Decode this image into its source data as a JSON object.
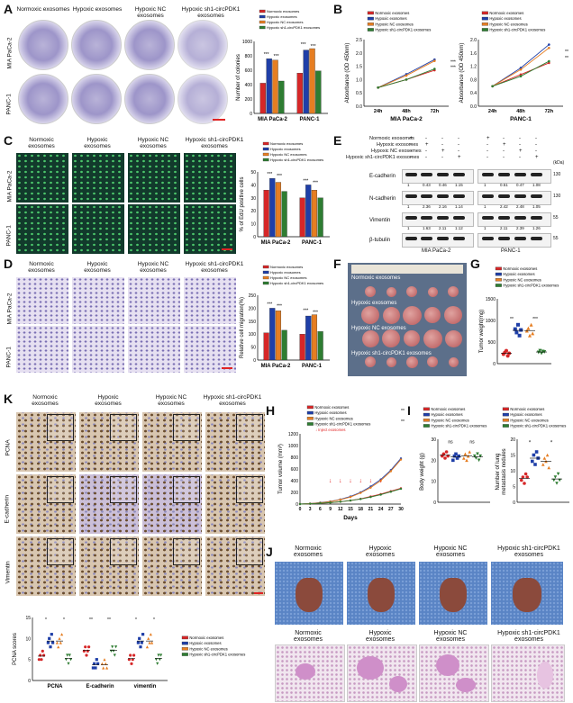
{
  "panel_letters": [
    "A",
    "B",
    "C",
    "D",
    "E",
    "F",
    "G",
    "H",
    "I",
    "J",
    "K"
  ],
  "groups": [
    "Normoxic exosomes",
    "Hypoxic exosomes",
    "Hypoxic NC exosomes",
    "Hypoxic sh1-circPDK1 exosomes"
  ],
  "group_headers": {
    "g1": "Normoxic\nexosomes",
    "g2": "Hypoxic\nexosomes",
    "g3": "Hypoxic NC\nexosomes",
    "g4": "Hypoxic sh1-circPDK1\nexosomes"
  },
  "cell_lines": [
    "MIA PaCa-2",
    "PANC-1"
  ],
  "stain_rows": [
    "PCNA",
    "E-cadherin",
    "Vimentin"
  ],
  "colors": {
    "normoxic": "#d62728",
    "hypoxic": "#1f3fa8",
    "hypoxicNC": "#e67e22",
    "sh1": "#2e7d32",
    "accent": "#e02424"
  },
  "panel_a": {
    "ylabel": "Number of colonies",
    "sig": [
      "***",
      "***",
      "***",
      "***"
    ]
  },
  "panel_b": {
    "ylabel": "Absorbance (OD 450nm)",
    "x_ticks": [
      "24h",
      "48h",
      "72h"
    ],
    "sig": [
      "***",
      "***",
      "**",
      "**"
    ]
  },
  "panel_c": {
    "ylabel": "% of EdU positive cells",
    "sig": [
      "***",
      "***",
      "***",
      "***"
    ]
  },
  "panel_d": {
    "ylabel": "Relative cell migration(%)",
    "sig": [
      "***",
      "***",
      "***",
      "***"
    ]
  },
  "panel_e": {
    "unit_label": "(kDa)",
    "rows": [
      {
        "name": "E-cadherin",
        "values_mia": [
          "1",
          "0.43",
          "0.46",
          "1.15"
        ],
        "values_panc": [
          "1",
          "0.51",
          "0.47",
          "1.08"
        ],
        "kda": "130"
      },
      {
        "name": "N-cadherin",
        "values_mia": [
          "1",
          "2.36",
          "2.16",
          "1.14"
        ],
        "values_panc": [
          "1",
          "2.42",
          "2.48",
          "1.05"
        ],
        "kda": "130"
      },
      {
        "name": "Vimentin",
        "values_mia": [
          "1",
          "1.63",
          "2.11",
          "1.12"
        ],
        "values_panc": [
          "1",
          "2.11",
          "2.39",
          "1.26"
        ],
        "kda": "55"
      },
      {
        "name": "β-tubulin",
        "values_mia": [],
        "values_panc": [],
        "kda": "55"
      }
    ],
    "kda_markers": [
      "130",
      "130",
      "55",
      "55"
    ],
    "plus": "+",
    "minus": "-"
  },
  "panel_f": {
    "rows": [
      "Normoxic exosomes",
      "Hypoxic exosomes",
      "Hypoxic NC exosomes",
      "Hypoxic sh1-circPDK1 exosomes"
    ]
  },
  "panel_g": {
    "ylabel": "Tumor weight(mg)",
    "sig": [
      "**",
      "***"
    ]
  },
  "panel_h": {
    "ylabel": "Tumor volume (mm³)",
    "xlabel": "Days",
    "x_ticks": [
      "0",
      "3",
      "6",
      "9",
      "12",
      "15",
      "18",
      "21",
      "24",
      "27",
      "30"
    ],
    "inject_label": "Inject exosomes",
    "sig": [
      "**",
      "**"
    ]
  },
  "panel_i": {
    "ylabel_left": "Body weight (g)",
    "ylabel_right": "Number of lung\nmetastasis nodules",
    "sig_left": [
      "ns",
      "ns"
    ],
    "sig_right": [
      "*",
      "*"
    ]
  },
  "panel_k": {
    "ylabel": "PCNA scores",
    "x_ticks": [
      "PCNA",
      "E-cadherin",
      "vimentin"
    ],
    "sig": [
      "*",
      "*",
      "**",
      "**",
      "*",
      "*"
    ]
  },
  "chart_data": [
    {
      "type": "bar",
      "id": "A",
      "categories": [
        "MIA PaCa-2",
        "PANC-1"
      ],
      "series": [
        {
          "name": "Normoxic exosomes",
          "values": [
            420,
            560
          ]
        },
        {
          "name": "Hypoxic exosomes",
          "values": [
            760,
            880
          ]
        },
        {
          "name": "Hypoxic NC exosomes",
          "values": [
            740,
            900
          ]
        },
        {
          "name": "Hypoxic sh1-circPDK1 exosomes",
          "values": [
            450,
            590
          ]
        }
      ],
      "ylabel": "Number of colonies",
      "ylim": [
        0,
        1000
      ]
    },
    {
      "type": "line",
      "id": "B-MIA",
      "x": [
        "24h",
        "48h",
        "72h"
      ],
      "series": [
        {
          "name": "Normoxic exosomes",
          "values": [
            0.7,
            1.0,
            1.35
          ]
        },
        {
          "name": "Hypoxic exosomes",
          "values": [
            0.7,
            1.2,
            1.75
          ]
        },
        {
          "name": "Hypoxic NC exosomes",
          "values": [
            0.7,
            1.15,
            1.7
          ]
        },
        {
          "name": "Hypoxic sh1-circPDK1 exosomes",
          "values": [
            0.7,
            1.0,
            1.4
          ]
        }
      ],
      "ylabel": "Absorbance (OD 450nm)",
      "xlabel": "MIA PaCa-2",
      "ylim": [
        0,
        2.5
      ]
    },
    {
      "type": "line",
      "id": "B-PANC",
      "x": [
        "24h",
        "48h",
        "72h"
      ],
      "series": [
        {
          "name": "Normoxic exosomes",
          "values": [
            0.6,
            0.95,
            1.3
          ]
        },
        {
          "name": "Hypoxic exosomes",
          "values": [
            0.6,
            1.15,
            1.85
          ]
        },
        {
          "name": "Hypoxic NC exosomes",
          "values": [
            0.6,
            1.1,
            1.75
          ]
        },
        {
          "name": "Hypoxic sh1-circPDK1 exosomes",
          "values": [
            0.6,
            0.9,
            1.35
          ]
        }
      ],
      "ylabel": "Absorbance (OD 450nm)",
      "xlabel": "PANC-1",
      "ylim": [
        0,
        2.0
      ]
    },
    {
      "type": "bar",
      "id": "C",
      "categories": [
        "MIA PaCa-2",
        "PANC-1"
      ],
      "series": [
        {
          "name": "Normoxic exosomes",
          "values": [
            36,
            30
          ]
        },
        {
          "name": "Hypoxic exosomes",
          "values": [
            45,
            40
          ]
        },
        {
          "name": "Hypoxic NC exosomes",
          "values": [
            42,
            36
          ]
        },
        {
          "name": "Hypoxic sh1-circPDK1 exosomes",
          "values": [
            35,
            30
          ]
        }
      ],
      "ylabel": "% of EdU positive cells",
      "ylim": [
        0,
        50
      ]
    },
    {
      "type": "bar",
      "id": "D",
      "categories": [
        "MIA PaCa-2",
        "PANC-1"
      ],
      "series": [
        {
          "name": "Normoxic exosomes",
          "values": [
            105,
            100
          ]
        },
        {
          "name": "Hypoxic exosomes",
          "values": [
            200,
            170
          ]
        },
        {
          "name": "Hypoxic NC exosomes",
          "values": [
            190,
            175
          ]
        },
        {
          "name": "Hypoxic sh1-circPDK1 exosomes",
          "values": [
            115,
            110
          ]
        }
      ],
      "ylabel": "Relative cell migration(%)",
      "ylim": [
        0,
        250
      ]
    },
    {
      "type": "scatter",
      "id": "G",
      "series": [
        {
          "name": "Normoxic exosomes",
          "values": [
            220,
            260,
            300,
            180,
            240
          ]
        },
        {
          "name": "Hypoxic exosomes",
          "values": [
            800,
            720,
            900,
            650,
            780
          ]
        },
        {
          "name": "Hypoxic NC exosomes",
          "values": [
            760,
            820,
            650,
            900,
            700
          ]
        },
        {
          "name": "Hypoxic sh1-circPDK1 exosomes",
          "values": [
            260,
            300,
            240,
            280,
            270
          ]
        }
      ],
      "ylabel": "Tumor weight(mg)",
      "ylim": [
        0,
        1500
      ]
    },
    {
      "type": "line",
      "id": "H",
      "x": [
        0,
        3,
        6,
        9,
        12,
        15,
        18,
        21,
        24,
        27,
        30
      ],
      "series": [
        {
          "name": "Normoxic exosomes",
          "values": [
            0,
            5,
            15,
            25,
            40,
            60,
            90,
            130,
            170,
            220,
            270
          ]
        },
        {
          "name": "Hypoxic exosomes",
          "values": [
            0,
            8,
            25,
            45,
            80,
            130,
            200,
            300,
            420,
            580,
            780
          ]
        },
        {
          "name": "Hypoxic NC exosomes",
          "values": [
            0,
            8,
            22,
            42,
            75,
            120,
            190,
            280,
            400,
            560,
            760
          ]
        },
        {
          "name": "Hypoxic sh1-circPDK1 exosomes",
          "values": [
            0,
            5,
            15,
            25,
            40,
            60,
            85,
            120,
            160,
            210,
            260
          ]
        }
      ],
      "ylabel": "Tumor volume (mm³)",
      "xlabel": "Days",
      "ylim": [
        0,
        1200
      ]
    },
    {
      "type": "scatter",
      "id": "I-left",
      "series": [
        {
          "name": "Normoxic exosomes",
          "values": [
            22,
            23,
            21,
            24,
            22
          ]
        },
        {
          "name": "Hypoxic exosomes",
          "values": [
            20,
            22,
            23,
            21,
            22
          ]
        },
        {
          "name": "Hypoxic NC exosomes",
          "values": [
            21,
            23,
            20,
            22,
            24
          ]
        },
        {
          "name": "Hypoxic sh1-circPDK1 exosomes",
          "values": [
            22,
            21,
            23,
            20,
            22
          ]
        }
      ],
      "ylabel": "Body weight (g)",
      "ylim": [
        0,
        30
      ]
    },
    {
      "type": "scatter",
      "id": "I-right",
      "series": [
        {
          "name": "Normoxic exosomes",
          "values": [
            7,
            8,
            6,
            9,
            8
          ]
        },
        {
          "name": "Hypoxic exosomes",
          "values": [
            13,
            15,
            12,
            16,
            14
          ]
        },
        {
          "name": "Hypoxic NC exosomes",
          "values": [
            12,
            14,
            13,
            15,
            11
          ]
        },
        {
          "name": "Hypoxic sh1-circPDK1 exosomes",
          "values": [
            7,
            8,
            6,
            9,
            7
          ]
        }
      ],
      "ylabel": "Number of lung\nmetastasis nodules",
      "ylim": [
        0,
        20
      ]
    },
    {
      "type": "scatter",
      "id": "K",
      "categories": [
        "PCNA",
        "E-cadherin",
        "vimentin"
      ],
      "series": [
        {
          "name": "Normoxic exosomes",
          "values": [
            [
              5,
              6,
              5,
              7,
              6
            ],
            [
              7,
              8,
              6,
              7,
              8
            ],
            [
              5,
              6,
              4,
              5,
              6
            ]
          ]
        },
        {
          "name": "Hypoxic exosomes",
          "values": [
            [
              9,
              10,
              8,
              11,
              9
            ],
            [
              3,
              4,
              3,
              5,
              4
            ],
            [
              9,
              10,
              8,
              9,
              11
            ]
          ]
        },
        {
          "name": "Hypoxic NC exosomes",
          "values": [
            [
              9,
              8,
              10,
              9,
              11
            ],
            [
              4,
              3,
              5,
              4,
              3
            ],
            [
              8,
              10,
              9,
              11,
              9
            ]
          ]
        },
        {
          "name": "Hypoxic sh1-circPDK1 exosomes",
          "values": [
            [
              5,
              6,
              4,
              6,
              5
            ],
            [
              7,
              8,
              7,
              6,
              8
            ],
            [
              5,
              4,
              6,
              5,
              6
            ]
          ]
        }
      ],
      "ylabel": "PCNA scores",
      "ylim": [
        0,
        15
      ]
    }
  ]
}
